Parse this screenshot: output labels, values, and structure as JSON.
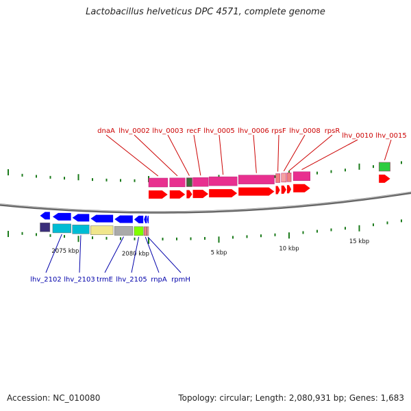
{
  "title": "Lactobacillus helveticus DPC 4571, complete genome",
  "footer": {
    "accession": "Accession: NC_010080",
    "topology": "Topology: circular; Length: 2,080,931 bp; Genes: 1,683"
  },
  "colors": {
    "label_red": "#cc0000",
    "label_blue": "#0000aa",
    "tick": "#1a7a1a",
    "backbone": "#666666",
    "cds_forward": "#ff0000",
    "cds_reverse": "#0000ff"
  },
  "scale": {
    "total_bp": 2080931,
    "tick_labels": [
      {
        "bp": 2075000,
        "label": "2075 kbp"
      },
      {
        "bp": 2080000,
        "label": "2080 kbp"
      },
      {
        "bp": 5000,
        "label": "5 kbp"
      },
      {
        "bp": 10000,
        "label": "10 kbp"
      },
      {
        "bp": 15000,
        "label": "15 kbp"
      }
    ]
  },
  "genes_forward": [
    {
      "name": "dnaA",
      "start_kbp": 0.0,
      "end_kbp": 1.35
    },
    {
      "name": "lhv_0002",
      "start_kbp": 1.5,
      "end_kbp": 2.6
    },
    {
      "name": "lhv_0003",
      "start_kbp": 2.7,
      "end_kbp": 3.1
    },
    {
      "name": "recF",
      "start_kbp": 3.15,
      "end_kbp": 4.25
    },
    {
      "name": "lhv_0005",
      "start_kbp": 4.3,
      "end_kbp": 6.3
    },
    {
      "name": "lhv_0006",
      "start_kbp": 6.4,
      "end_kbp": 8.95
    },
    {
      "name": "rpsF",
      "start_kbp": 9.05,
      "end_kbp": 9.35
    },
    {
      "name": "lhv_0008",
      "start_kbp": 9.45,
      "end_kbp": 9.8
    },
    {
      "name": "rpsR",
      "start_kbp": 9.85,
      "end_kbp": 10.15
    },
    {
      "name": "lhv_0010",
      "start_kbp": 10.3,
      "end_kbp": 11.5
    },
    {
      "name": "lhv_0015",
      "start_kbp": 16.4,
      "end_kbp": 17.2
    }
  ],
  "genes_reverse": [
    {
      "name": "",
      "start_kbp": 2073.2,
      "end_kbp": 2073.9
    },
    {
      "name": "lhv_2102",
      "start_kbp": 2074.1,
      "end_kbp": 2075.4
    },
    {
      "name": "lhv_2103",
      "start_kbp": 2075.5,
      "end_kbp": 2076.7
    },
    {
      "name": "",
      "start_kbp": 2076.8,
      "end_kbp": 2078.4
    },
    {
      "name": "trmE",
      "start_kbp": 2078.5,
      "end_kbp": 2079.8
    },
    {
      "name": "lhv_2105",
      "start_kbp": 2079.9,
      "end_kbp": 2080.55
    },
    {
      "name": "rnpA",
      "start_kbp": 2080.6,
      "end_kbp": 2080.8
    },
    {
      "name": "rpmH",
      "start_kbp": 2080.82,
      "end_kbp": 2080.93
    }
  ]
}
